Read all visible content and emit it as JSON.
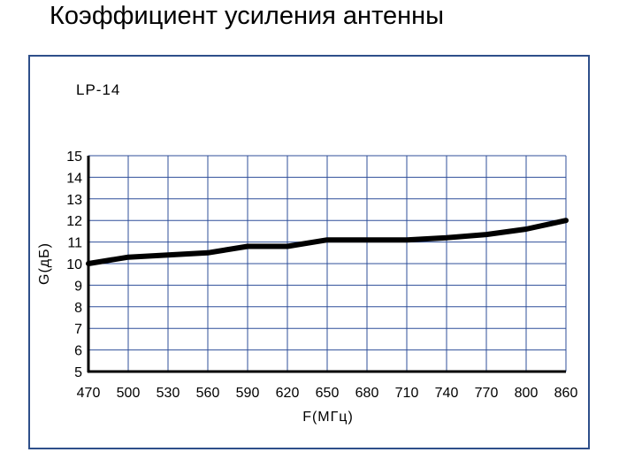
{
  "page": {
    "title": "Коэффициент усиления антенны"
  },
  "chart_data": {
    "type": "line",
    "title": "LP-14",
    "xlabel": "F(МГц)",
    "ylabel": "G(дБ)",
    "x_ticks": [
      470,
      500,
      530,
      560,
      590,
      620,
      650,
      680,
      710,
      740,
      770,
      800,
      860
    ],
    "y_ticks": [
      5,
      6,
      7,
      8,
      9,
      10,
      11,
      12,
      13,
      14,
      15
    ],
    "ylim": [
      5,
      15
    ],
    "grid": true,
    "series": [
      {
        "color": "#000000",
        "x": [
          470,
          500,
          530,
          560,
          590,
          620,
          650,
          680,
          710,
          740,
          770,
          800,
          860
        ],
        "y": [
          10.0,
          10.3,
          10.4,
          10.5,
          10.8,
          10.8,
          11.1,
          11.1,
          11.1,
          11.2,
          11.35,
          11.6,
          12.0
        ]
      }
    ],
    "colors": {
      "grid": "#2f4f9a",
      "frame": "#2e4f8a",
      "line": "#000000"
    }
  }
}
